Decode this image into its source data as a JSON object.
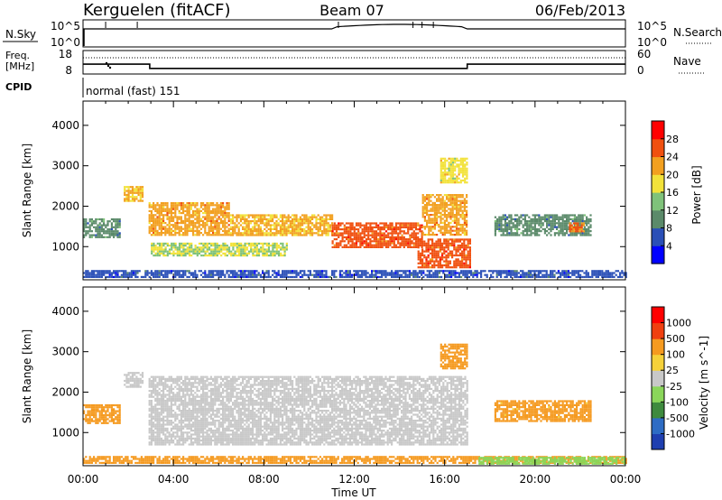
{
  "header": {
    "title": "Kerguelen (fitACF)",
    "beam": "Beam 07",
    "date": "06/Feb/2013"
  },
  "nsky_panel": {
    "left_label": "N.Sky",
    "right_label": "N.Search",
    "left_ticks": [
      "10^5",
      "10^0"
    ],
    "right_ticks": [
      "10^5",
      "10^0"
    ]
  },
  "freq_panel": {
    "left_label_line1": "Freq.",
    "left_label_line2": "[MHz]",
    "right_label": "Nave",
    "left_ticks": [
      "18",
      "8"
    ],
    "right_ticks": [
      "60",
      "0"
    ],
    "freq_steps": [
      {
        "t": 0.0,
        "mhz": 12.2
      },
      {
        "t": 2.95,
        "mhz": 12.2
      },
      {
        "t": 2.95,
        "mhz": 10.4
      },
      {
        "t": 17.0,
        "mhz": 10.4
      },
      {
        "t": 17.0,
        "mhz": 12.2
      },
      {
        "t": 24.0,
        "mhz": 12.2
      }
    ]
  },
  "cpid": {
    "label": "CPID",
    "mode": "normal (fast) 151"
  },
  "chart_data": [
    {
      "type": "heatmap",
      "name": "Power",
      "ylabel": "Slant Range [km]",
      "xlabel": "Time UT",
      "x_ticks": [
        "00:00",
        "04:00",
        "08:00",
        "12:00",
        "16:00",
        "20:00",
        "00:00"
      ],
      "x_range_hours": [
        0,
        24
      ],
      "y_ticks": [
        1000,
        2000,
        3000,
        4000
      ],
      "y_range_km": [
        180,
        4600
      ],
      "colorbar": {
        "label": "Power [dB]",
        "ticks": [
          "4",
          "8",
          "12",
          "16",
          "20",
          "24",
          "28"
        ],
        "range": [
          0,
          32
        ],
        "colors": [
          "#0000ff",
          "#2a4fb7",
          "#5b8a6a",
          "#7fc27a",
          "#f2e23a",
          "#f2a020",
          "#f05010",
          "#ff0000"
        ]
      },
      "regions": [
        {
          "t0": 0.0,
          "t1": 24.0,
          "r0": 250,
          "r1": 420,
          "v": 6
        },
        {
          "t0": 0.0,
          "t1": 1.6,
          "r0": 1250,
          "r1": 1700,
          "v": 10
        },
        {
          "t0": 1.8,
          "t1": 2.6,
          "r0": 2150,
          "r1": 2500,
          "v": 20
        },
        {
          "t0": 2.9,
          "t1": 6.5,
          "r0": 1300,
          "r1": 2100,
          "v": 22
        },
        {
          "t0": 6.5,
          "t1": 11.0,
          "r0": 1300,
          "r1": 1800,
          "v": 21
        },
        {
          "t0": 3.0,
          "t1": 9.0,
          "r0": 800,
          "r1": 1100,
          "v": 16
        },
        {
          "t0": 11.0,
          "t1": 15.0,
          "r0": 1000,
          "r1": 1600,
          "v": 26
        },
        {
          "t0": 15.0,
          "t1": 17.0,
          "r0": 1300,
          "r1": 2300,
          "v": 22
        },
        {
          "t0": 15.8,
          "t1": 17.0,
          "r0": 2600,
          "r1": 3200,
          "v": 18
        },
        {
          "t0": 14.8,
          "t1": 17.1,
          "r0": 500,
          "r1": 1200,
          "v": 26
        },
        {
          "t0": 18.2,
          "t1": 22.5,
          "r0": 1300,
          "r1": 1800,
          "v": 10
        },
        {
          "t0": 21.5,
          "t1": 22.2,
          "r0": 1400,
          "r1": 1600,
          "v": 24
        }
      ]
    },
    {
      "type": "heatmap",
      "name": "Velocity",
      "ylabel": "Slant Range [km]",
      "xlabel": "Time UT",
      "x_ticks": [
        "00:00",
        "04:00",
        "08:00",
        "12:00",
        "16:00",
        "20:00",
        "00:00"
      ],
      "x_range_hours": [
        0,
        24
      ],
      "y_ticks": [
        1000,
        2000,
        3000,
        4000
      ],
      "y_range_km": [
        180,
        4600
      ],
      "colorbar": {
        "label": "Velocity [m s^-1]",
        "ticks": [
          "1000",
          "500",
          "100",
          "25",
          "-25",
          "-100",
          "-500",
          "-1000"
        ],
        "colors": [
          "#1f3fb0",
          "#2e6cc4",
          "#3e8a3e",
          "#8ad65a",
          "#c8c8c8",
          "#f5d13a",
          "#f59a20",
          "#f04010",
          "#ff0000"
        ]
      },
      "regions": [
        {
          "t0": 0.0,
          "t1": 24.0,
          "r0": 250,
          "r1": 420,
          "v": -150
        },
        {
          "t0": 2.9,
          "t1": 17.0,
          "r0": 700,
          "r1": 2400,
          "v": 0
        },
        {
          "t0": 1.8,
          "t1": 2.6,
          "r0": 2150,
          "r1": 2500,
          "v": 0
        },
        {
          "t0": 0.0,
          "t1": 1.6,
          "r0": 1250,
          "r1": 1700,
          "v": -200
        },
        {
          "t0": 15.8,
          "t1": 17.0,
          "r0": 2600,
          "r1": 3200,
          "v": -300
        },
        {
          "t0": 18.2,
          "t1": 22.5,
          "r0": 1300,
          "r1": 1800,
          "v": -120
        },
        {
          "t0": 17.5,
          "t1": 24.0,
          "r0": 250,
          "r1": 400,
          "v": 60
        }
      ]
    }
  ]
}
